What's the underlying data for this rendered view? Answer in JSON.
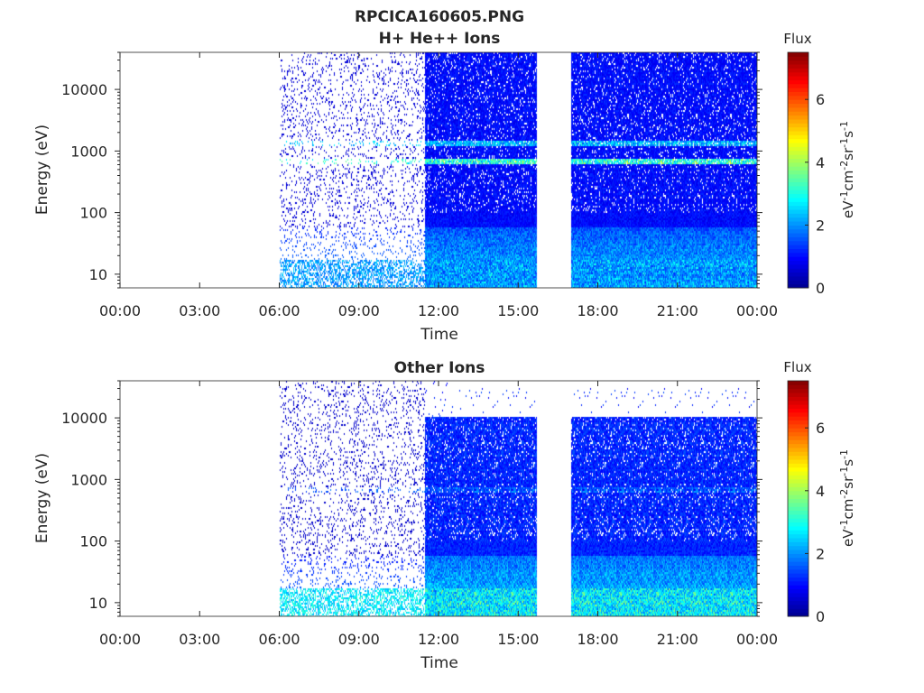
{
  "figure": {
    "filename": "RPCICA160605.PNG"
  },
  "colors": {
    "background": "#ffffff",
    "axis": "#262626",
    "colormap": [
      "#00008f",
      "#0000ff",
      "#0080ff",
      "#00ffff",
      "#80ff80",
      "#ffff00",
      "#ff8000",
      "#ff0000",
      "#800000"
    ]
  },
  "chart_data": [
    {
      "type": "heatmap",
      "title": "H+ He++ Ions",
      "xlabel": "Time",
      "ylabel": "Energy (eV)",
      "x_unit": "hours",
      "xlim": [
        0,
        24
      ],
      "x_ticks": [
        0,
        3,
        6,
        9,
        12,
        15,
        18,
        21,
        24
      ],
      "x_tick_labels": [
        "00:00",
        "03:00",
        "06:00",
        "09:00",
        "12:00",
        "15:00",
        "18:00",
        "21:00",
        "00:00"
      ],
      "y_scale": "log",
      "ylim": [
        6,
        40000
      ],
      "y_ticks": [
        10,
        100,
        1000,
        10000
      ],
      "y_tick_labels": [
        "10",
        "100",
        "1000",
        "10000"
      ],
      "colorbar": {
        "label": "Flux",
        "unit_label": "eV-1cm-2sr-1s-1",
        "range": [
          0,
          7.5
        ],
        "ticks": [
          0,
          2,
          4,
          6
        ],
        "tick_labels": [
          "0",
          "2",
          "4",
          "6"
        ]
      },
      "segments": [
        {
          "start": 6.0,
          "end": 11.5,
          "mode": "sparse",
          "base_flux": 0.6
        },
        {
          "start": 11.5,
          "end": 15.7,
          "mode": "dense",
          "base_flux": 1.0
        },
        {
          "start": 17.0,
          "end": 24.0,
          "mode": "dense",
          "base_flux": 1.0
        }
      ],
      "data_gaps": [
        [
          0,
          6.0
        ],
        [
          15.7,
          17.0
        ]
      ],
      "features": [
        {
          "energy": 700,
          "flux": 3.2,
          "note": "ion beam line"
        },
        {
          "energy": 1400,
          "flux": 2.4,
          "note": "secondary line"
        },
        {
          "energy": 10,
          "flux": 2.3,
          "note": "low-energy enhancement"
        }
      ]
    },
    {
      "type": "heatmap",
      "title": "Other Ions",
      "xlabel": "Time",
      "ylabel": "Energy (eV)",
      "x_unit": "hours",
      "xlim": [
        0,
        24
      ],
      "x_ticks": [
        0,
        3,
        6,
        9,
        12,
        15,
        18,
        21,
        24
      ],
      "x_tick_labels": [
        "00:00",
        "03:00",
        "06:00",
        "09:00",
        "12:00",
        "15:00",
        "18:00",
        "21:00",
        "00:00"
      ],
      "y_scale": "log",
      "ylim": [
        6,
        40000
      ],
      "y_ticks": [
        10,
        100,
        1000,
        10000
      ],
      "y_tick_labels": [
        "10",
        "100",
        "1000",
        "10000"
      ],
      "colorbar": {
        "label": "Flux",
        "unit_label": "eV-1cm-2sr-1s-1",
        "range": [
          0,
          7.5
        ],
        "ticks": [
          0,
          2,
          4,
          6
        ],
        "tick_labels": [
          "0",
          "2",
          "4",
          "6"
        ]
      },
      "segments": [
        {
          "start": 6.0,
          "end": 11.5,
          "mode": "sparse",
          "base_flux": 0.5
        },
        {
          "start": 11.5,
          "end": 15.7,
          "mode": "dense",
          "base_flux": 1.2
        },
        {
          "start": 17.0,
          "end": 24.0,
          "mode": "dense",
          "base_flux": 1.2
        }
      ],
      "data_gaps": [
        [
          0,
          6.0
        ],
        [
          15.7,
          17.0
        ]
      ],
      "features": [
        {
          "energy": 700,
          "flux": 1.6,
          "note": "ion beam line"
        },
        {
          "energy": 10,
          "flux": 3.0,
          "note": "low-energy enhancement"
        }
      ],
      "upper_energy_cutoff": 11000
    }
  ]
}
